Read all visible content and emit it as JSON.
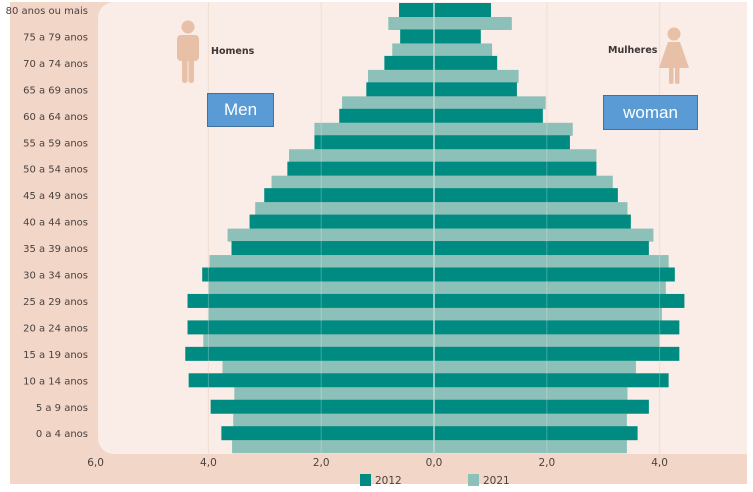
{
  "colors": {
    "series_2012": "#008b82",
    "series_2021": "#8cc0b8",
    "center_line": "#bcd9d3",
    "gridline": "#efd6c6",
    "icon": "#e8c0a8"
  },
  "callouts": {
    "men": "Men",
    "woman": "woman"
  },
  "chart_data": {
    "type": "bar",
    "orientation": "horizontal-population-pyramid",
    "title": "",
    "xlabel": "",
    "ylabel": "",
    "xlim": [
      -6.0,
      5.5
    ],
    "x_ticks": [
      -6,
      -4,
      -2,
      0,
      2,
      4
    ],
    "x_tick_labels": [
      "6,0",
      "4,0",
      "2,0",
      "0,0",
      "2,0",
      "4,0"
    ],
    "grid": true,
    "left_side_label": "Homens",
    "right_side_label": "Mulheres",
    "legend": {
      "position": "bottom-center",
      "entries": [
        "2012",
        "2021"
      ]
    },
    "categories": [
      "80 anos ou mais",
      "75 a 79 anos",
      "70 a 74 anos",
      "65 a 69 anos",
      "60 a 64 anos",
      "55 a 59 anos",
      "50 a 54 anos",
      "45 a 49 anos",
      "40 a 44 anos",
      "35 a 39 anos",
      "30 a 34 anos",
      "25 a 29 anos",
      "20 a 24 anos",
      "15 a 19 anos",
      "10 a 14 anos",
      "5 a 9 anos",
      "0 a 4 anos"
    ],
    "series": [
      {
        "name": "2012",
        "side": "Homens",
        "values": [
          0.62,
          0.6,
          0.88,
          1.2,
          1.68,
          2.12,
          2.6,
          3.01,
          3.27,
          3.59,
          4.11,
          4.37,
          4.37,
          4.41,
          4.35,
          3.96,
          3.77
        ]
      },
      {
        "name": "2021",
        "side": "Homens",
        "values": [
          0.81,
          0.74,
          1.17,
          1.63,
          2.12,
          2.57,
          2.88,
          3.17,
          3.66,
          3.98,
          4.0,
          4.0,
          4.09,
          3.75,
          3.54,
          3.56,
          3.58
        ]
      },
      {
        "name": "2012",
        "side": "Mulheres",
        "values": [
          1.01,
          0.83,
          1.12,
          1.47,
          1.93,
          2.41,
          2.88,
          3.26,
          3.49,
          3.81,
          4.27,
          4.44,
          4.35,
          4.35,
          4.16,
          3.81,
          3.61
        ]
      },
      {
        "name": "2021",
        "side": "Mulheres",
        "values": [
          1.38,
          1.03,
          1.5,
          1.98,
          2.46,
          2.88,
          3.17,
          3.43,
          3.89,
          4.16,
          4.11,
          4.04,
          4.0,
          3.58,
          3.43,
          3.42,
          3.42
        ]
      }
    ]
  }
}
